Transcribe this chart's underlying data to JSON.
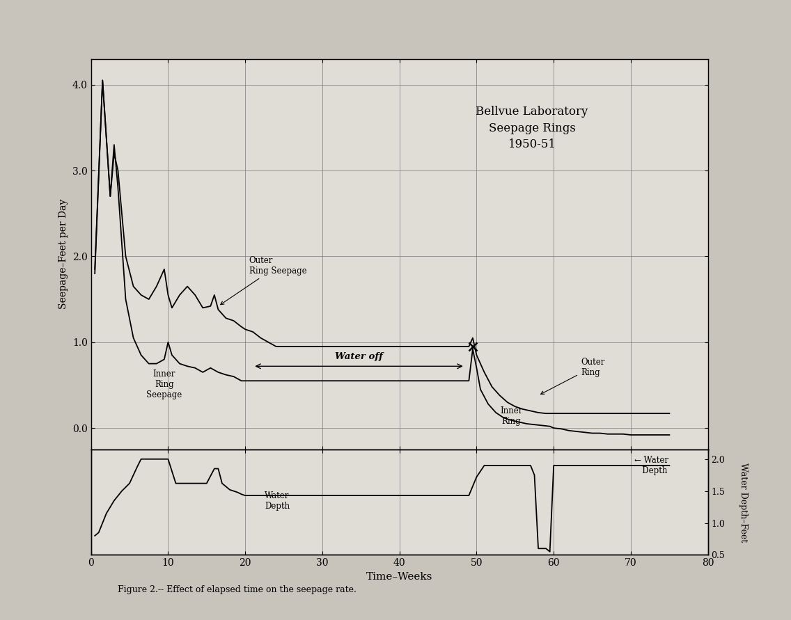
{
  "title": "Bellvue Laboratory\nSeepage Rings\n1950-51",
  "xlabel": "Time–Weeks",
  "ylabel_left": "Seepage–Feet per Day",
  "ylabel_right": "Water Depth–Feet",
  "figcaption": "Figure 2.-- Effect of elapsed time on the seepage rate.",
  "xlim": [
    0,
    80
  ],
  "ylim_seepage": [
    -0.25,
    4.3
  ],
  "yticks_seepage": [
    0.0,
    1.0,
    2.0,
    3.0,
    4.0
  ],
  "ylim_water": [
    0.5,
    2.15
  ],
  "yticks_water_right": [
    0.5,
    1.0,
    1.5,
    2.0
  ],
  "xticks": [
    0,
    10,
    20,
    30,
    40,
    50,
    60,
    70,
    80
  ],
  "bg_color": "#c8c4bc",
  "plot_bg_color": "#e0ddd6",
  "inner_ring_x": [
    0.5,
    1.5,
    2.5,
    3.0,
    3.5,
    4.5,
    5.5,
    6.5,
    7.5,
    8.5,
    9.5,
    10.0,
    10.5,
    11.5,
    12.5,
    13.5,
    14.5,
    15.5,
    16.5,
    17.5,
    18.5,
    19.5,
    20.0,
    21.0,
    22.0,
    23.0,
    24.0,
    25.0,
    26.0,
    27.0,
    28.0,
    29.0,
    30.0,
    35.0,
    40.0,
    45.0,
    48.0,
    49.0,
    49.5,
    50.0,
    50.5,
    51.5,
    52.5,
    53.5,
    54.5,
    55.5,
    56.5,
    57.5,
    58.5,
    59.5,
    60.0,
    61.0,
    62.0,
    63.0,
    64.0,
    65.0,
    66.0,
    67.0,
    68.0,
    69.0,
    70.0,
    71.0,
    72.0,
    73.0,
    74.0,
    75.0
  ],
  "inner_ring_y": [
    1.8,
    4.05,
    2.7,
    3.3,
    2.8,
    1.5,
    1.05,
    0.85,
    0.75,
    0.75,
    0.8,
    1.0,
    0.85,
    0.75,
    0.72,
    0.7,
    0.65,
    0.7,
    0.65,
    0.62,
    0.6,
    0.55,
    0.55,
    0.55,
    0.55,
    0.55,
    0.55,
    0.55,
    0.55,
    0.55,
    0.55,
    0.55,
    0.55,
    0.55,
    0.55,
    0.55,
    0.55,
    0.55,
    0.92,
    0.7,
    0.45,
    0.28,
    0.18,
    0.12,
    0.09,
    0.07,
    0.05,
    0.04,
    0.03,
    0.02,
    0.0,
    -0.01,
    -0.03,
    -0.04,
    -0.05,
    -0.06,
    -0.06,
    -0.07,
    -0.07,
    -0.07,
    -0.08,
    -0.08,
    -0.08,
    -0.08,
    -0.08,
    -0.08
  ],
  "outer_ring_x": [
    0.5,
    1.5,
    2.5,
    3.0,
    3.5,
    4.5,
    5.5,
    6.5,
    7.5,
    8.5,
    9.5,
    10.0,
    10.5,
    11.5,
    12.5,
    13.5,
    14.5,
    15.5,
    16.0,
    16.5,
    17.5,
    18.5,
    19.5,
    20.0,
    21.0,
    22.0,
    23.0,
    24.0,
    25.0,
    26.0,
    27.0,
    28.0,
    29.0,
    30.0,
    35.0,
    40.0,
    45.0,
    48.0,
    49.0,
    49.5,
    50.0,
    51.0,
    52.0,
    53.0,
    54.0,
    55.0,
    56.0,
    57.0,
    58.0,
    59.0,
    60.0,
    61.0,
    62.0,
    63.0,
    64.0,
    65.0,
    66.0,
    67.0,
    68.0,
    69.0,
    70.0,
    71.0,
    72.0,
    73.0,
    74.0,
    75.0
  ],
  "outer_ring_y": [
    1.85,
    4.05,
    2.7,
    3.2,
    3.0,
    2.0,
    1.65,
    1.55,
    1.5,
    1.65,
    1.85,
    1.55,
    1.4,
    1.55,
    1.65,
    1.55,
    1.4,
    1.42,
    1.55,
    1.38,
    1.28,
    1.25,
    1.18,
    1.15,
    1.12,
    1.05,
    1.0,
    0.95,
    0.95,
    0.95,
    0.95,
    0.95,
    0.95,
    0.95,
    0.95,
    0.95,
    0.95,
    0.95,
    0.95,
    1.05,
    0.85,
    0.65,
    0.48,
    0.38,
    0.3,
    0.25,
    0.22,
    0.2,
    0.18,
    0.17,
    0.17,
    0.17,
    0.17,
    0.17,
    0.17,
    0.17,
    0.17,
    0.17,
    0.17,
    0.17,
    0.17,
    0.17,
    0.17,
    0.17,
    0.17,
    0.17
  ],
  "water_depth_x": [
    0.5,
    1.0,
    1.5,
    2.0,
    3.0,
    4.0,
    5.0,
    6.0,
    6.5,
    7.0,
    7.5,
    8.0,
    9.0,
    10.0,
    11.0,
    12.0,
    13.0,
    14.0,
    15.0,
    16.0,
    16.5,
    17.0,
    18.0,
    19.0,
    19.5,
    20.0,
    20.5,
    21.0,
    25.0,
    30.0,
    35.0,
    40.0,
    45.0,
    48.5,
    49.0,
    50.0,
    51.0,
    52.0,
    53.0,
    54.0,
    55.0,
    56.0,
    57.0,
    57.5,
    58.0,
    59.0,
    59.5,
    60.0,
    60.5,
    61.0,
    62.0,
    63.0,
    64.0,
    65.0,
    66.0,
    67.0,
    68.0,
    69.0,
    70.0,
    71.0,
    72.0,
    73.0,
    74.0,
    75.0
  ],
  "water_depth_y": [
    0.8,
    0.85,
    1.0,
    1.15,
    1.35,
    1.5,
    1.62,
    1.88,
    2.0,
    2.0,
    2.0,
    2.0,
    2.0,
    2.0,
    1.62,
    1.62,
    1.62,
    1.62,
    1.62,
    1.85,
    1.85,
    1.62,
    1.52,
    1.48,
    1.45,
    1.43,
    1.43,
    1.43,
    1.43,
    1.43,
    1.43,
    1.43,
    1.43,
    1.43,
    1.43,
    1.72,
    1.9,
    1.9,
    1.9,
    1.9,
    1.9,
    1.9,
    1.9,
    1.75,
    0.6,
    0.6,
    0.55,
    1.9,
    1.9,
    1.9,
    1.9,
    1.9,
    1.9,
    1.9,
    1.9,
    1.9,
    1.9,
    1.9,
    1.9,
    1.9,
    1.9,
    1.9,
    1.9,
    1.9
  ],
  "line_color": "#000000",
  "grid_color": "#777777",
  "water_off_x1": 21.0,
  "water_off_x2": 48.5,
  "water_off_y": 0.72,
  "xmark_x": 49.5,
  "xmark_y": 0.95
}
